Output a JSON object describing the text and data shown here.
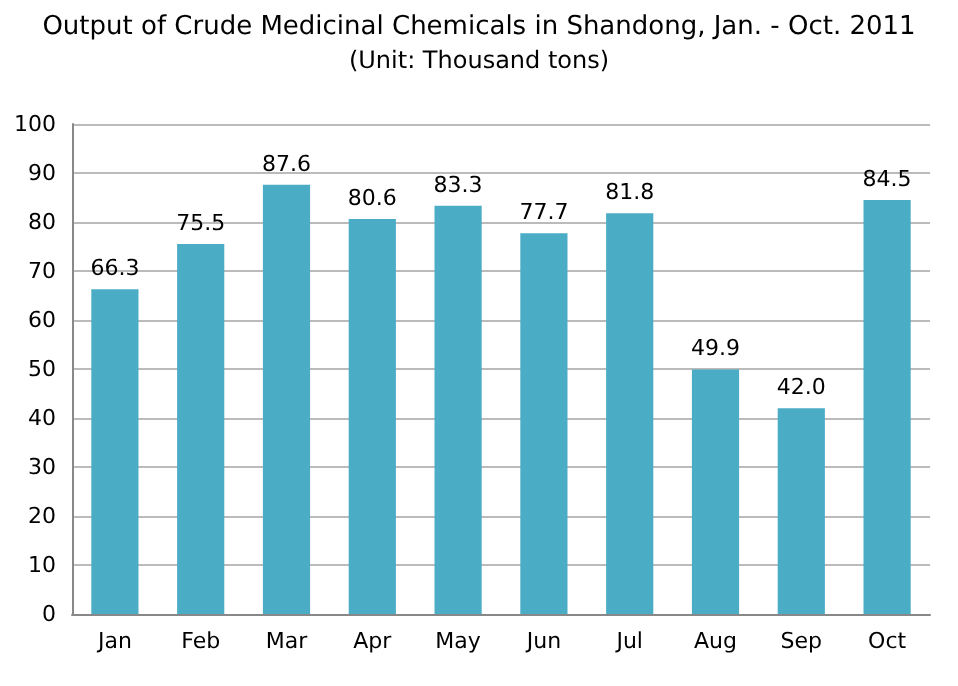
{
  "chart_data": {
    "type": "bar",
    "title": "Output of Crude Medicinal Chemicals in Shandong, Jan. - Oct. 2011",
    "subtitle": "(Unit: Thousand tons)",
    "categories": [
      "Jan",
      "Feb",
      "Mar",
      "Apr",
      "May",
      "Jun",
      "Jul",
      "Aug",
      "Sep",
      "Oct"
    ],
    "values": [
      66.3,
      75.5,
      87.6,
      80.6,
      83.3,
      77.7,
      81.8,
      49.9,
      42.0,
      84.5
    ],
    "color": "#4bacc6",
    "ylim": [
      0,
      100
    ],
    "yticks": [
      0,
      10,
      20,
      30,
      40,
      50,
      60,
      70,
      80,
      90,
      100
    ],
    "value_labels": [
      "66.3",
      "75.5",
      "87.6",
      "80.6",
      "83.3",
      "77.7",
      "81.8",
      "49.9",
      "42.0",
      "84.5"
    ],
    "grid": "y"
  }
}
